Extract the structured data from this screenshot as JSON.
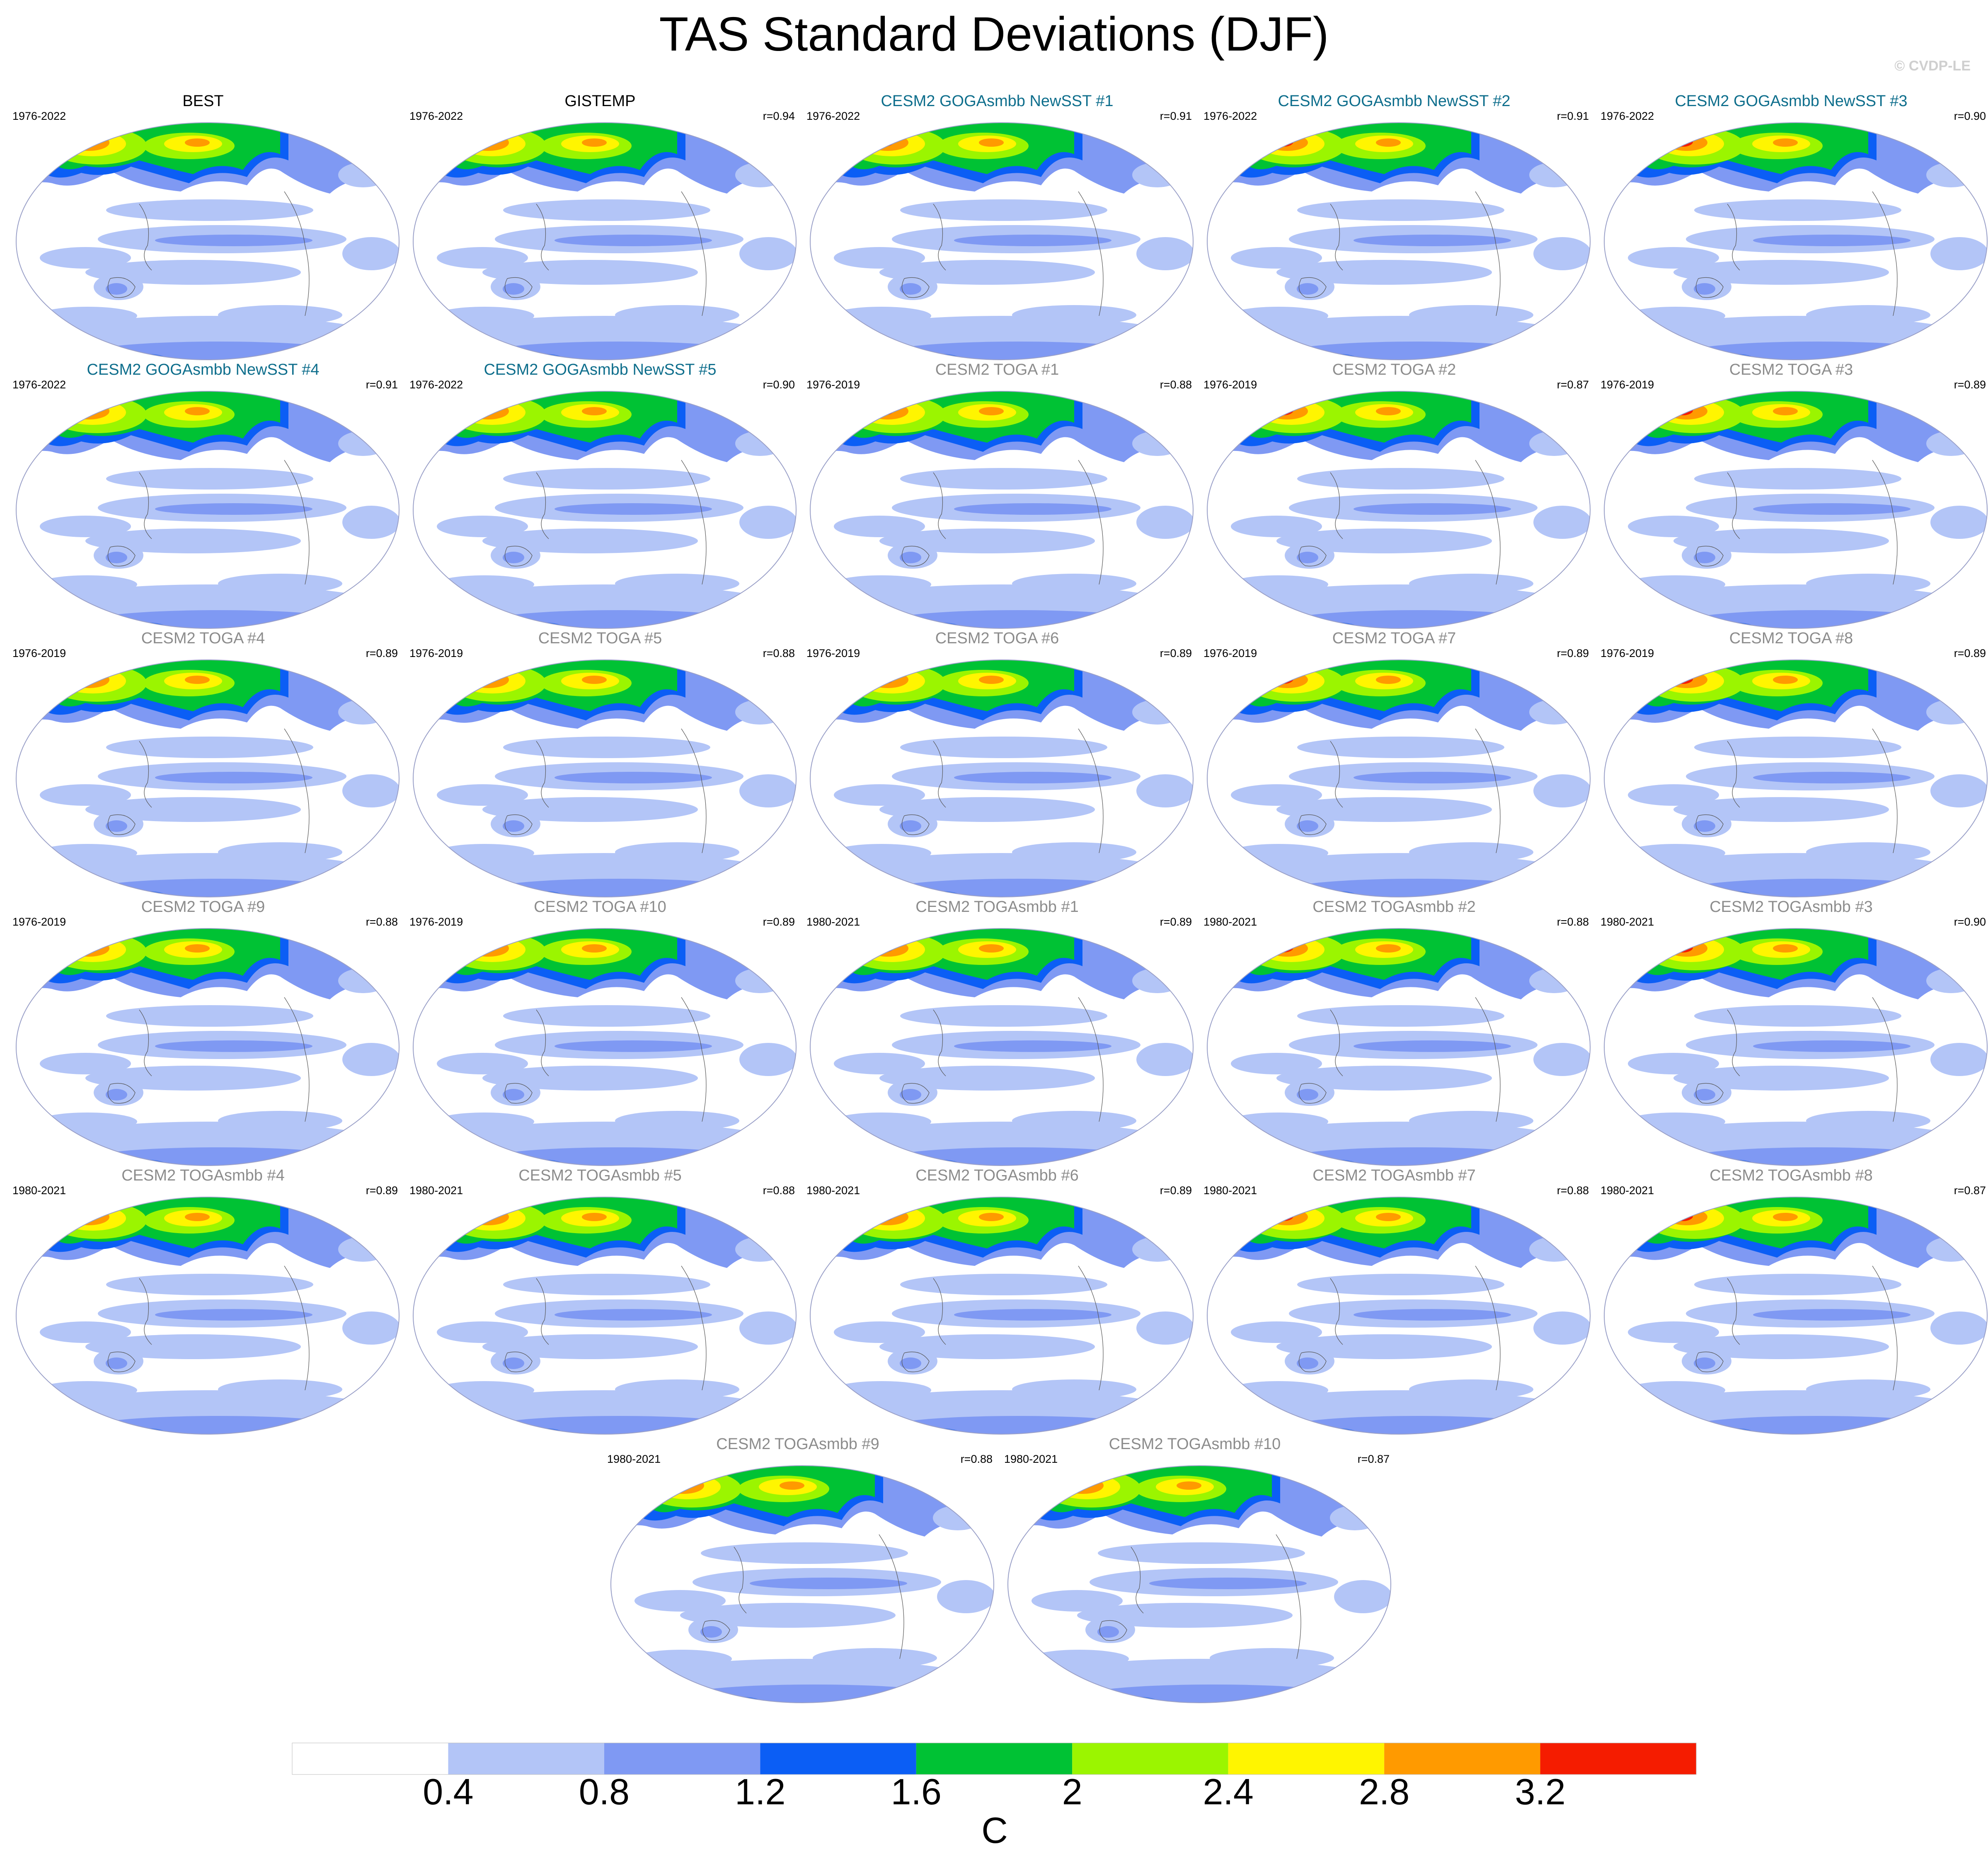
{
  "title": "TAS Standard Deviations (DJF)",
  "credit": "© CVDP-LE",
  "colors": {
    "title_obs": "#000000",
    "title_goga": "#0e6e8c",
    "title_toga": "#8c8c8c",
    "levels": [
      "#ffffff",
      "#b3c5f7",
      "#7f99f3",
      "#0b5ef5",
      "#00c234",
      "#9bf500",
      "#fff500",
      "#ff9a00",
      "#f51c00"
    ]
  },
  "panels": [
    {
      "title": "BEST",
      "period": "1976-2022",
      "r": "",
      "style": "obs"
    },
    {
      "title": "GISTEMP",
      "period": "1976-2022",
      "r": "r=0.94",
      "style": "obs"
    },
    {
      "title": "CESM2 GOGAsmbb NewSST #1",
      "period": "1976-2022",
      "r": "r=0.91",
      "style": "goga"
    },
    {
      "title": "CESM2 GOGAsmbb NewSST #2",
      "period": "1976-2022",
      "r": "r=0.91",
      "style": "goga"
    },
    {
      "title": "CESM2 GOGAsmbb NewSST #3",
      "period": "1976-2022",
      "r": "r=0.90",
      "style": "goga"
    },
    {
      "title": "CESM2 GOGAsmbb NewSST #4",
      "period": "1976-2022",
      "r": "r=0.91",
      "style": "goga"
    },
    {
      "title": "CESM2 GOGAsmbb NewSST #5",
      "period": "1976-2022",
      "r": "r=0.90",
      "style": "goga"
    },
    {
      "title": "CESM2 TOGA #1",
      "period": "1976-2019",
      "r": "r=0.88",
      "style": "toga"
    },
    {
      "title": "CESM2 TOGA #2",
      "period": "1976-2019",
      "r": "r=0.87",
      "style": "toga"
    },
    {
      "title": "CESM2 TOGA #3",
      "period": "1976-2019",
      "r": "r=0.89",
      "style": "toga"
    },
    {
      "title": "CESM2 TOGA #4",
      "period": "1976-2019",
      "r": "r=0.89",
      "style": "toga"
    },
    {
      "title": "CESM2 TOGA #5",
      "period": "1976-2019",
      "r": "r=0.88",
      "style": "toga"
    },
    {
      "title": "CESM2 TOGA #6",
      "period": "1976-2019",
      "r": "r=0.89",
      "style": "toga"
    },
    {
      "title": "CESM2 TOGA #7",
      "period": "1976-2019",
      "r": "r=0.89",
      "style": "toga"
    },
    {
      "title": "CESM2 TOGA #8",
      "period": "1976-2019",
      "r": "r=0.89",
      "style": "toga"
    },
    {
      "title": "CESM2 TOGA #9",
      "period": "1976-2019",
      "r": "r=0.88",
      "style": "toga"
    },
    {
      "title": "CESM2 TOGA #10",
      "period": "1976-2019",
      "r": "r=0.89",
      "style": "toga"
    },
    {
      "title": "CESM2 TOGAsmbb #1",
      "period": "1980-2021",
      "r": "r=0.89",
      "style": "toga"
    },
    {
      "title": "CESM2 TOGAsmbb #2",
      "period": "1980-2021",
      "r": "r=0.88",
      "style": "toga"
    },
    {
      "title": "CESM2 TOGAsmbb #3",
      "period": "1980-2021",
      "r": "r=0.90",
      "style": "toga"
    },
    {
      "title": "CESM2 TOGAsmbb #4",
      "period": "1980-2021",
      "r": "r=0.89",
      "style": "toga"
    },
    {
      "title": "CESM2 TOGAsmbb #5",
      "period": "1980-2021",
      "r": "r=0.88",
      "style": "toga"
    },
    {
      "title": "CESM2 TOGAsmbb #6",
      "period": "1980-2021",
      "r": "r=0.89",
      "style": "toga"
    },
    {
      "title": "CESM2 TOGAsmbb #7",
      "period": "1980-2021",
      "r": "r=0.88",
      "style": "toga"
    },
    {
      "title": "CESM2 TOGAsmbb #8",
      "period": "1980-2021",
      "r": "r=0.87",
      "style": "toga"
    },
    {
      "title": "CESM2 TOGAsmbb #9",
      "period": "1980-2021",
      "r": "r=0.88",
      "style": "toga"
    },
    {
      "title": "CESM2 TOGAsmbb #10",
      "period": "1980-2021",
      "r": "r=0.87",
      "style": "toga"
    }
  ],
  "colorbar": {
    "ticks": [
      "0.4",
      "0.8",
      "1.2",
      "1.6",
      "2",
      "2.4",
      "2.8",
      "3.2"
    ],
    "unit": "C"
  }
}
